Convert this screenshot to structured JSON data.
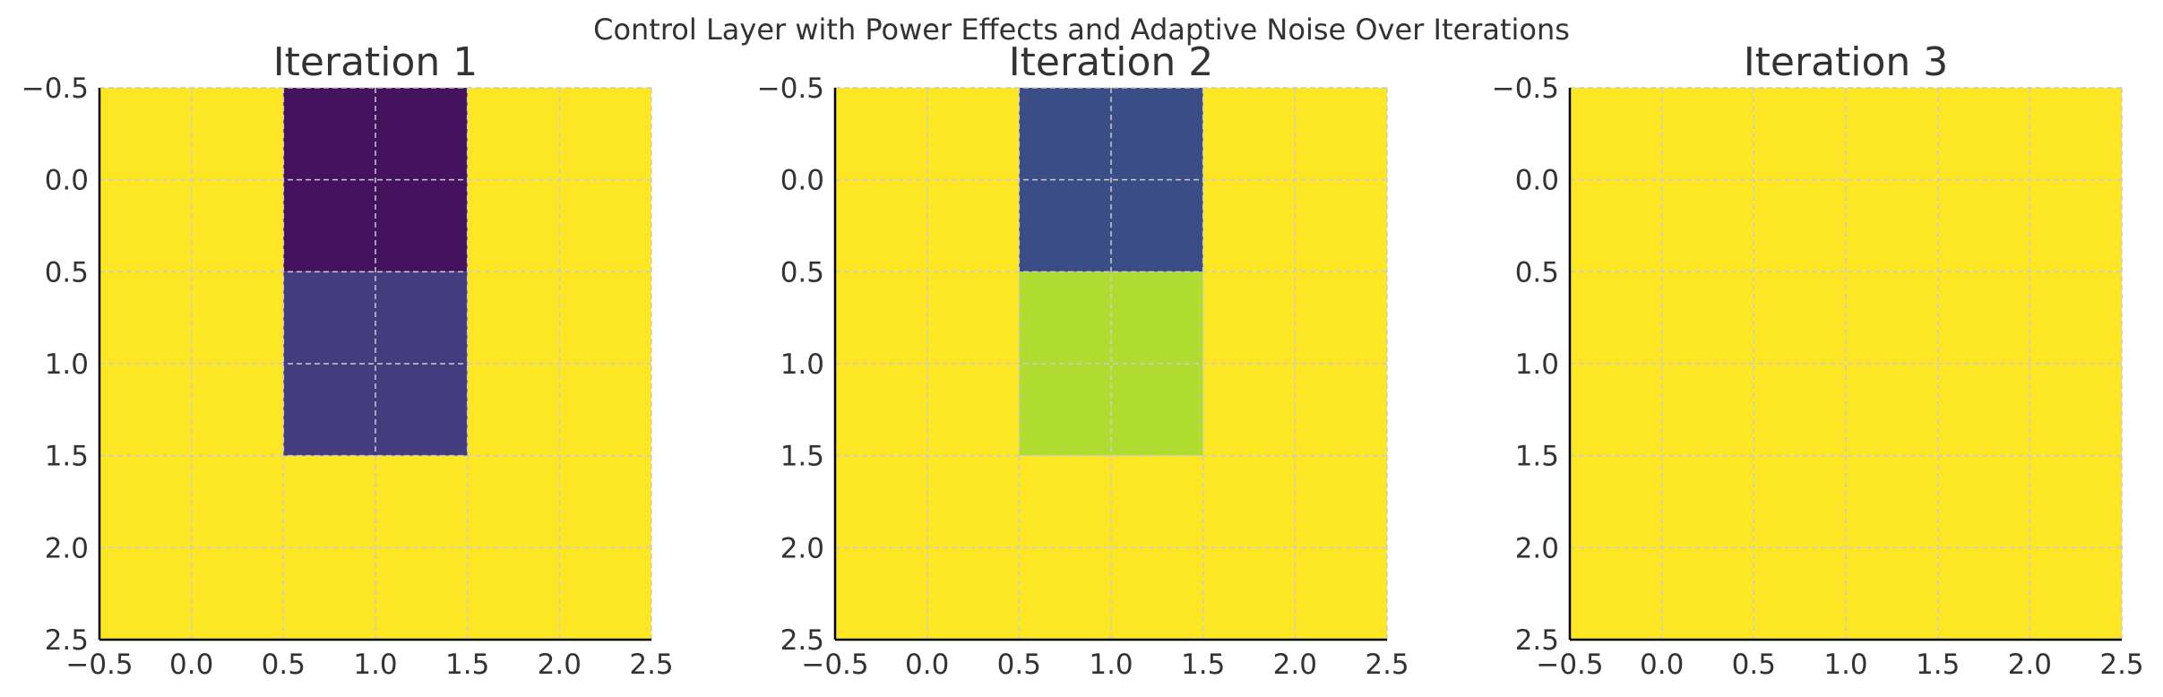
{
  "title": "Control Layer with Power Effects and Adaptive Noise Over Iterations",
  "colors": {
    "background": "#ffffff",
    "text": "#333333",
    "grid": "#cccccc",
    "axis": "#000000"
  },
  "chart_data": [
    {
      "type": "heatmap",
      "title": "Iteration 1",
      "xlabel": "",
      "ylabel": "",
      "xlim": [
        -0.5,
        2.5
      ],
      "ylim": [
        2.5,
        -0.5
      ],
      "xticks": [
        "−0.5",
        "0.0",
        "0.5",
        "1.0",
        "1.5",
        "2.0",
        "2.5"
      ],
      "yticks": [
        "−0.5",
        "0.0",
        "0.5",
        "1.0",
        "1.5",
        "2.0",
        "2.5"
      ],
      "grid": true,
      "colormap": "viridis",
      "cells": [
        [
          "#fde725",
          "#45135e",
          "#fde725"
        ],
        [
          "#fde725",
          "#433d80",
          "#fde725"
        ],
        [
          "#fde725",
          "#fde725",
          "#fde725"
        ]
      ]
    },
    {
      "type": "heatmap",
      "title": "Iteration 2",
      "xlabel": "",
      "ylabel": "",
      "xlim": [
        -0.5,
        2.5
      ],
      "ylim": [
        2.5,
        -0.5
      ],
      "xticks": [
        "−0.5",
        "0.0",
        "0.5",
        "1.0",
        "1.5",
        "2.0",
        "2.5"
      ],
      "yticks": [
        "−0.5",
        "0.0",
        "0.5",
        "1.0",
        "1.5",
        "2.0",
        "2.5"
      ],
      "grid": true,
      "colormap": "viridis",
      "cells": [
        [
          "#fde725",
          "#3b4d87",
          "#fde725"
        ],
        [
          "#fde725",
          "#b0dc31",
          "#fde725"
        ],
        [
          "#fde725",
          "#fde725",
          "#fde725"
        ]
      ]
    },
    {
      "type": "heatmap",
      "title": "Iteration 3",
      "xlabel": "",
      "ylabel": "",
      "xlim": [
        -0.5,
        2.5
      ],
      "ylim": [
        2.5,
        -0.5
      ],
      "xticks": [
        "−0.5",
        "0.0",
        "0.5",
        "1.0",
        "1.5",
        "2.0",
        "2.5"
      ],
      "yticks": [
        "−0.5",
        "0.0",
        "0.5",
        "1.0",
        "1.5",
        "2.0",
        "2.5"
      ],
      "grid": true,
      "colormap": "viridis",
      "cells": [
        [
          "#fde725",
          "#fde725",
          "#fde725"
        ],
        [
          "#fde725",
          "#fde725",
          "#fde725"
        ],
        [
          "#fde725",
          "#fde725",
          "#fde725"
        ]
      ]
    }
  ]
}
